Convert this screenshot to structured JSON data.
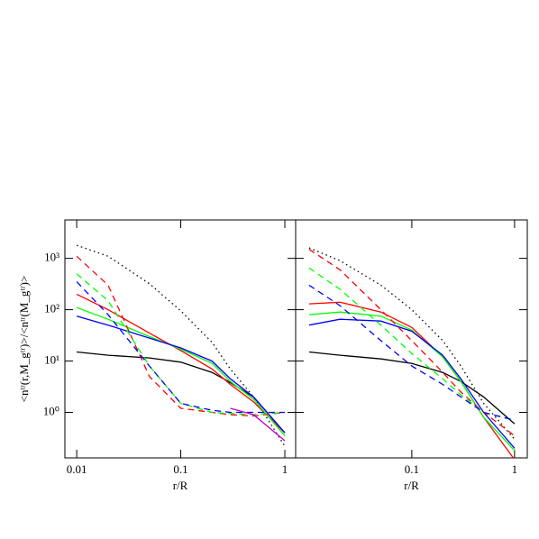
{
  "chart_data": [
    {
      "type": "line",
      "x_label": "r/R",
      "y_label": "<nᵗʳ(r,M_gᵗʳ)>/<nᵗʳ(M_gᵗʳ)>",
      "log_x": true,
      "log_y": true,
      "xlim": [
        0.0077,
        1.27
      ],
      "ylim": [
        0.13,
        5600
      ],
      "xticks": [
        0.01,
        0.1,
        1
      ],
      "yticks": [
        {
          "value": 1,
          "label": "10⁰"
        },
        {
          "value": 10,
          "label": "10¹"
        },
        {
          "value": 100,
          "label": "10²"
        },
        {
          "value": 1000,
          "label": "10³"
        }
      ],
      "x": [
        0.01,
        0.02,
        0.05,
        0.1,
        0.2,
        0.3,
        0.5,
        1
      ],
      "series": [
        {
          "color": "#000000",
          "dash": "dotted",
          "values": [
            1800,
            1100,
            320,
            95,
            23,
            7,
            2,
            0.22
          ]
        },
        {
          "color": "#000000",
          "dash": "solid",
          "values": [
            15,
            13,
            11.5,
            9.5,
            6,
            3.8,
            2,
            0.4
          ]
        },
        {
          "color": "#ff0000",
          "dash": "solid",
          "values": [
            200,
            100,
            35,
            16,
            7,
            3.5,
            1.6,
            0.4
          ]
        },
        {
          "color": "#00ff00",
          "dash": "solid",
          "values": [
            110,
            65,
            30,
            17,
            9,
            4,
            1.8,
            0.35
          ]
        },
        {
          "color": "#0000ff",
          "dash": "solid",
          "values": [
            75,
            50,
            28,
            18,
            10,
            4.5,
            2,
            0.4
          ]
        },
        {
          "color": "#ff0000",
          "dash": "dashed",
          "values": [
            1100,
            300,
            5,
            1.2,
            1,
            0.9,
            0.85,
            1
          ]
        },
        {
          "color": "#00ff00",
          "dash": "dashed",
          "values": [
            500,
            150,
            8,
            1.5,
            1,
            0.95,
            0.9,
            1
          ]
        },
        {
          "color": "#0000ff",
          "dash": "dashed",
          "values": [
            350,
            80,
            8,
            1.5,
            1.1,
            1,
            1,
            1
          ]
        },
        {
          "color": "#c000c0",
          "dash": "solid",
          "values": [
            null,
            null,
            null,
            null,
            null,
            1.2,
            0.9,
            0.28
          ]
        }
      ]
    },
    {
      "type": "line",
      "x_label": "r/R",
      "log_x": true,
      "log_y": true,
      "xlim": [
        0.0074,
        1.33
      ],
      "ylim": [
        0.13,
        5600
      ],
      "xticks": [
        0.1,
        1
      ],
      "yticks": [
        1,
        10,
        100,
        1000
      ],
      "x": [
        0.01,
        0.02,
        0.05,
        0.1,
        0.2,
        0.3,
        0.5,
        1
      ],
      "series": [
        {
          "color": "#000000",
          "dash": "dotted",
          "values": [
            1600,
            900,
            300,
            100,
            25,
            8,
            1.5,
            0.3
          ]
        },
        {
          "color": "#000000",
          "dash": "solid",
          "values": [
            15,
            13,
            11,
            9,
            6,
            4,
            2,
            0.6
          ]
        },
        {
          "color": "#ff0000",
          "dash": "solid",
          "values": [
            130,
            140,
            90,
            45,
            12,
            4,
            0.8,
            0.12
          ]
        },
        {
          "color": "#00ff00",
          "dash": "solid",
          "values": [
            80,
            90,
            75,
            40,
            12,
            4,
            0.8,
            0.18
          ]
        },
        {
          "color": "#0000ff",
          "dash": "solid",
          "values": [
            50,
            65,
            60,
            38,
            13,
            4.5,
            1,
            0.2
          ]
        },
        {
          "color": "#ff0000",
          "dash": "dashed",
          "values": [
            1500,
            600,
            100,
            25,
            6,
            2.5,
            1,
            0.35
          ]
        },
        {
          "color": "#00ff00",
          "dash": "dashed",
          "values": [
            650,
            250,
            50,
            14,
            4.5,
            2.2,
            1,
            0.7
          ]
        },
        {
          "color": "#0000ff",
          "dash": "dashed",
          "values": [
            300,
            120,
            25,
            8,
            3.5,
            2,
            1,
            0.7
          ]
        }
      ]
    }
  ]
}
